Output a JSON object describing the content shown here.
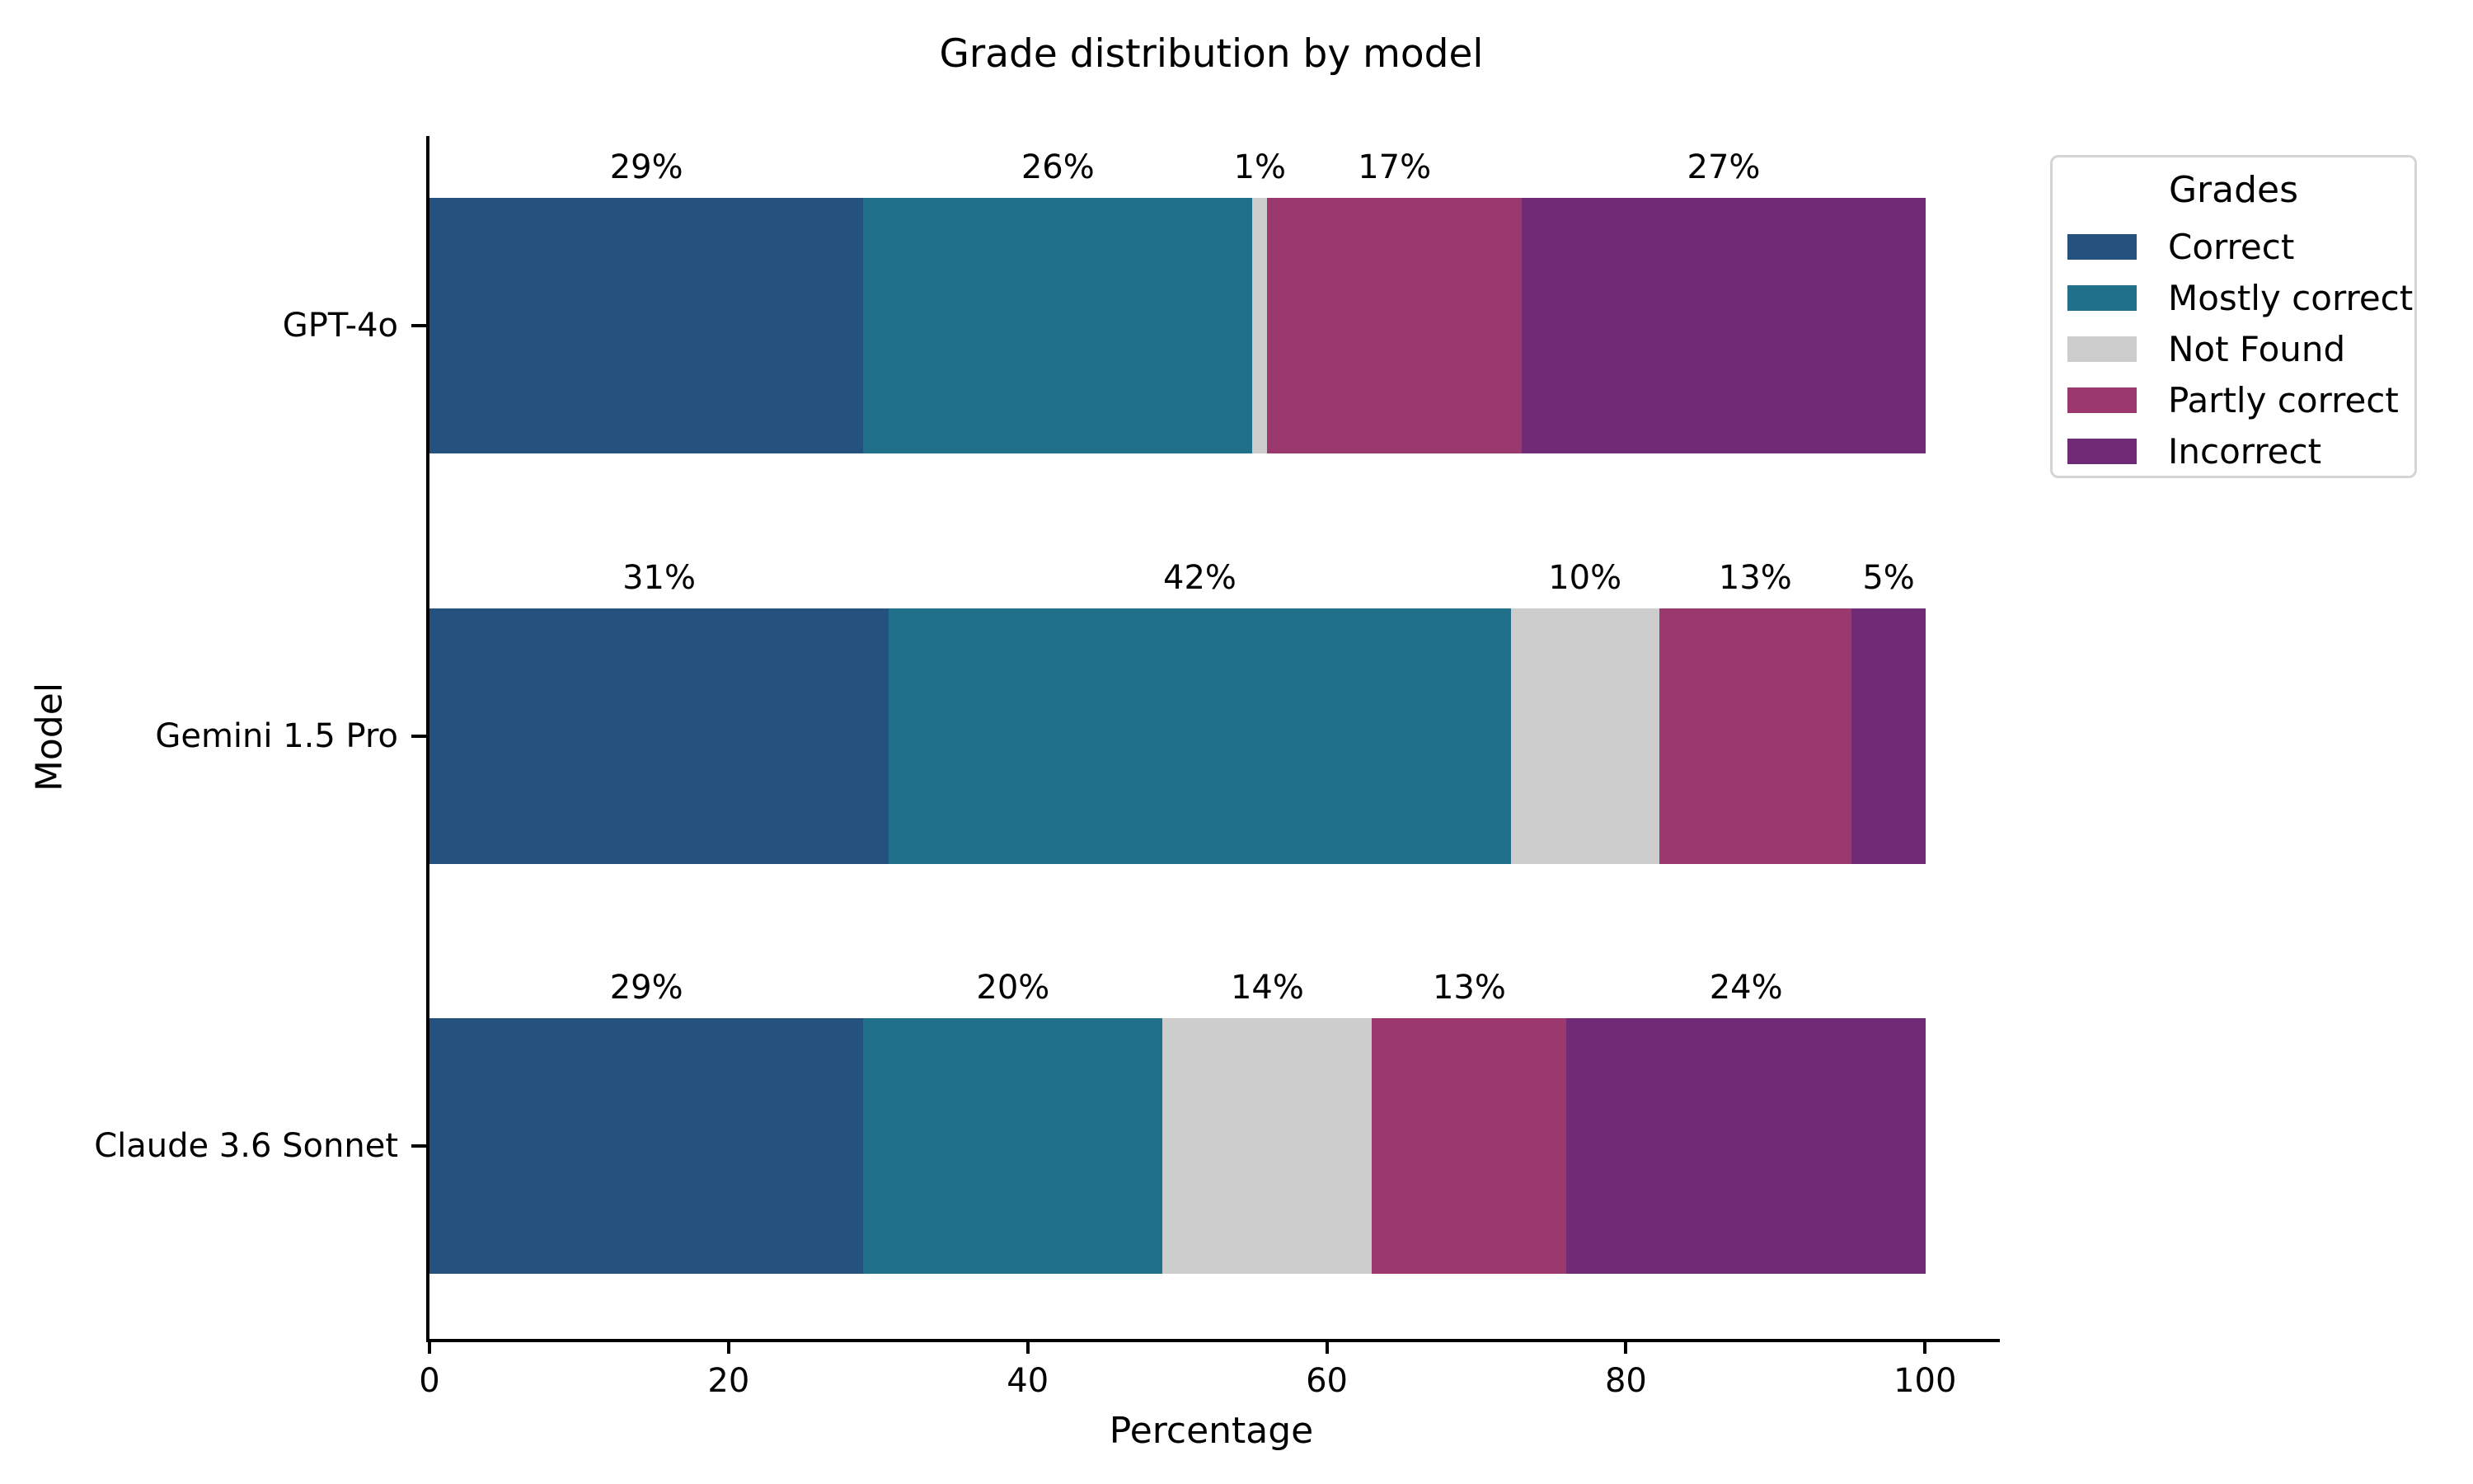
{
  "title": "Grade distribution by model",
  "axes": {
    "xlabel": "Percentage",
    "ylabel": "Model"
  },
  "legend": {
    "title": "Grades",
    "entries": [
      {
        "label": "Correct",
        "color": "#24517E"
      },
      {
        "label": "Mostly correct",
        "color": "#20708C"
      },
      {
        "label": "Not Found",
        "color": "#CDCDCD"
      },
      {
        "label": "Partly correct",
        "color": "#9B396E"
      },
      {
        "label": "Incorrect",
        "color": "#702B76"
      }
    ]
  },
  "chart_data": {
    "type": "bar",
    "orientation": "horizontal",
    "stacked": true,
    "title": "Grade distribution by model",
    "xlabel": "Percentage",
    "ylabel": "Model",
    "xlim": [
      0,
      105
    ],
    "x_ticks": [
      0,
      20,
      40,
      60,
      80,
      100
    ],
    "x_tick_labels": [
      "0",
      "20",
      "40",
      "60",
      "80",
      "100"
    ],
    "grid": false,
    "legend_title": "Grades",
    "legend_position": "upper-right-outside",
    "categories": [
      "GPT-4o",
      "Gemini 1.5 Pro",
      "Claude 3.6 Sonnet"
    ],
    "series": [
      {
        "name": "Correct",
        "color": "#24517E",
        "values": [
          29,
          31,
          29
        ],
        "value_labels": [
          "29%",
          "31%",
          "29%"
        ]
      },
      {
        "name": "Mostly correct",
        "color": "#20708C",
        "values": [
          26,
          42,
          20
        ],
        "value_labels": [
          "26%",
          "42%",
          "20%"
        ]
      },
      {
        "name": "Not Found",
        "color": "#CDCDCD",
        "values": [
          1,
          10,
          14
        ],
        "value_labels": [
          "1%",
          "10%",
          "14%"
        ]
      },
      {
        "name": "Partly correct",
        "color": "#9B396E",
        "values": [
          17,
          13,
          13
        ],
        "value_labels": [
          "17%",
          "13%",
          "13%"
        ]
      },
      {
        "name": "Incorrect",
        "color": "#702B76",
        "values": [
          27,
          5,
          24
        ],
        "value_labels": [
          "27%",
          "5%",
          "24%"
        ]
      }
    ]
  }
}
